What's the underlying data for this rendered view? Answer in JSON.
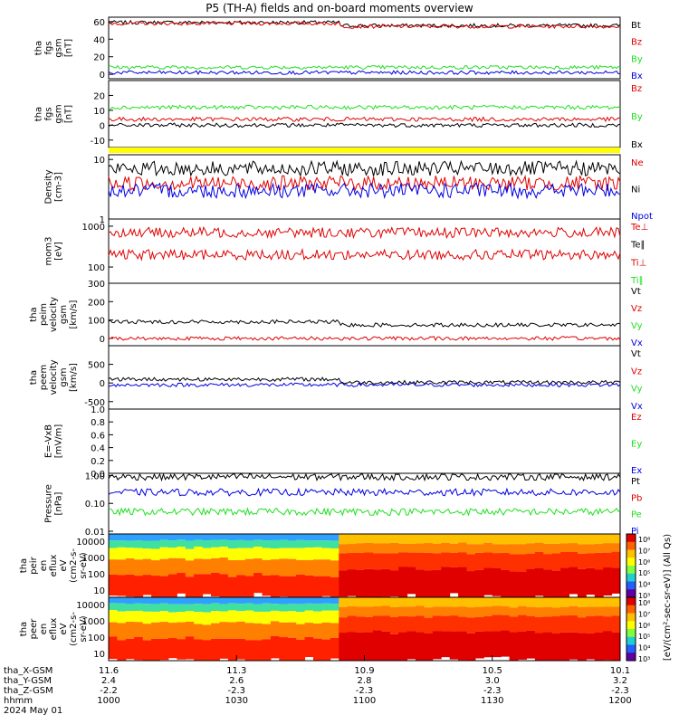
{
  "title": "P5 (TH-A) fields and on-board moments overview",
  "colors": {
    "black": "#000000",
    "red": "#e00000",
    "green": "#20e020",
    "blue": "#0000e0",
    "yellow": "#ffff00"
  },
  "chart_data": [
    {
      "type": "line",
      "ylabel_lines": [
        "tha",
        "fgs",
        "gsm",
        "[nT]"
      ],
      "yticks": [
        "60",
        "40",
        "20",
        "0"
      ],
      "ylim": [
        -5,
        65
      ],
      "legend": [
        {
          "name": "Bt",
          "color": "black"
        },
        {
          "name": "Bz",
          "color": "red"
        },
        {
          "name": "By",
          "color": "green"
        },
        {
          "name": "Bx",
          "color": "blue"
        }
      ],
      "series": [
        {
          "name": "Bt",
          "level": 59
        },
        {
          "name": "Bz",
          "level": 58
        },
        {
          "name": "By",
          "level": 8
        },
        {
          "name": "Bx",
          "level": 2
        }
      ]
    },
    {
      "type": "line",
      "ylabel_lines": [
        "tha",
        "fgs",
        "gsm",
        "[nT]"
      ],
      "yticks": [
        "20",
        "10",
        "0",
        "-10"
      ],
      "ylim": [
        -15,
        30
      ],
      "legend": [
        {
          "name": "Bz",
          "color": "red"
        },
        {
          "name": "By",
          "color": "green"
        },
        {
          "name": "Bx",
          "color": "black"
        }
      ],
      "series": [
        {
          "name": "By",
          "level": 12
        },
        {
          "name": "Bz",
          "level": 4
        },
        {
          "name": "Bx",
          "level": 0
        }
      ]
    },
    {
      "type": "line",
      "ylabel_lines": [
        "Density",
        "[cm-3]"
      ],
      "yticks": [
        "10",
        "1"
      ],
      "ylim": [
        1,
        12
      ],
      "log": true,
      "legend": [
        {
          "name": "Ne",
          "color": "red"
        },
        {
          "name": "Ni",
          "color": "black"
        },
        {
          "name": "Npot",
          "color": "blue"
        }
      ],
      "series": [
        {
          "name": "Ni",
          "level": 7
        },
        {
          "name": "Ne",
          "level": 4
        },
        {
          "name": "Npot",
          "level": 3
        }
      ]
    },
    {
      "type": "line",
      "ylabel_lines": [
        "mom3",
        "[eV]"
      ],
      "yticks": [
        "1000",
        "100"
      ],
      "ylim": [
        40,
        1500
      ],
      "log": true,
      "legend": [
        {
          "name": "Te⊥",
          "color": "red"
        },
        {
          "name": "Te∥",
          "color": "black"
        },
        {
          "name": "Ti⊥",
          "color": "red"
        },
        {
          "name": "Ti∥",
          "color": "green"
        }
      ],
      "series": [
        {
          "name": "Te",
          "level": 700
        },
        {
          "name": "Ti",
          "level": 200
        }
      ]
    },
    {
      "type": "line",
      "ylabel_lines": [
        "tha",
        "peim",
        "velocity",
        "gsm",
        "[km/s]"
      ],
      "yticks": [
        "300",
        "200",
        "100",
        "0"
      ],
      "ylim": [
        -40,
        300
      ],
      "legend": [
        {
          "name": "Vt",
          "color": "black"
        },
        {
          "name": "Vz",
          "color": "red"
        },
        {
          "name": "Vy",
          "color": "green"
        },
        {
          "name": "Vx",
          "color": "blue"
        }
      ],
      "series": [
        {
          "name": "Vt",
          "level": 90
        },
        {
          "name": "Vz",
          "level": 0
        }
      ]
    },
    {
      "type": "line",
      "ylabel_lines": [
        "tha",
        "peem",
        "velocity",
        "gsm",
        "[km/s]"
      ],
      "yticks": [
        "500",
        "0",
        "-500"
      ],
      "ylim": [
        -700,
        1000
      ],
      "legend": [
        {
          "name": "Vt",
          "color": "black"
        },
        {
          "name": "Vz",
          "color": "red"
        },
        {
          "name": "Vy",
          "color": "green"
        },
        {
          "name": "Vx",
          "color": "blue"
        }
      ],
      "series": [
        {
          "name": "Vt",
          "level": 100
        },
        {
          "name": "Vx",
          "level": -50
        }
      ]
    },
    {
      "type": "line",
      "ylabel_lines": [
        "E=-VxB",
        "[mV/m]"
      ],
      "yticks": [
        "1.0",
        "0.8",
        "0.6",
        "0.4",
        "0.2",
        "0.0"
      ],
      "ylim": [
        0,
        1
      ],
      "legend": [
        {
          "name": "Ez",
          "color": "red"
        },
        {
          "name": "Ey",
          "color": "green"
        },
        {
          "name": "Ex",
          "color": "blue"
        }
      ],
      "series": []
    },
    {
      "type": "line",
      "ylabel_lines": [
        "Pressure",
        "[nPa]"
      ],
      "yticks": [
        "1.00",
        "0.10",
        "0.01"
      ],
      "ylim": [
        0.008,
        1.2
      ],
      "log": true,
      "legend": [
        {
          "name": "Pt",
          "color": "black"
        },
        {
          "name": "Pb",
          "color": "red"
        },
        {
          "name": "Pe",
          "color": "green"
        },
        {
          "name": "Pi",
          "color": "blue"
        }
      ],
      "series": [
        {
          "name": "Pt",
          "level": 0.9
        },
        {
          "name": "Pi",
          "level": 0.25
        },
        {
          "name": "Pe",
          "level": 0.05
        }
      ]
    },
    {
      "type": "heatmap",
      "ylabel_lines": [
        "tha",
        "peir",
        "en",
        "eflux",
        "eV",
        "(cm2-s-",
        "sr-eV)"
      ],
      "yticks": [
        "10000",
        "1000",
        "100",
        "10"
      ],
      "log": true,
      "colorbar_ticks": [
        "10⁸",
        "10⁷",
        "10⁶",
        "10⁵",
        "10⁴",
        "10³"
      ]
    },
    {
      "type": "heatmap",
      "ylabel_lines": [
        "tha",
        "peer",
        "en",
        "eflux",
        "eV",
        "(cm2-s-",
        "sr-eV)"
      ],
      "yticks": [
        "10000",
        "1000",
        "100",
        "10"
      ],
      "log": true,
      "colorbar_ticks": [
        "10⁸",
        "10⁷",
        "10⁶",
        "10⁵",
        "10⁴",
        "10³"
      ]
    }
  ],
  "colorbar_label": "[eV/(cm²-sec-sr-eV)] (All Qs)",
  "xaxis": {
    "row_labels": [
      "tha_X-GSM",
      "tha_Y-GSM",
      "tha_Z-GSM",
      "hhmm",
      "2024 May 01"
    ],
    "ticks": [
      {
        "x": "11.6",
        "y": "2.4",
        "z": "-2.2",
        "hhmm": "1000"
      },
      {
        "x": "11.3",
        "y": "2.6",
        "z": "-2.3",
        "hhmm": "1030"
      },
      {
        "x": "10.9",
        "y": "2.8",
        "z": "-2.3",
        "hhmm": "1100"
      },
      {
        "x": "10.5",
        "y": "3.0",
        "z": "-2.3",
        "hhmm": "1130"
      },
      {
        "x": "10.1",
        "y": "3.2",
        "z": "-2.3",
        "hhmm": "1200"
      }
    ]
  }
}
